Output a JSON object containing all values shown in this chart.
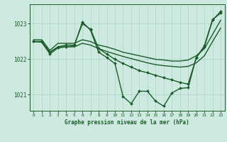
{
  "background_color": "#ceeae0",
  "grid_color": "#a8d5c5",
  "line_color": "#1a5c2a",
  "xlabel": "Graphe pression niveau de la mer (hPa)",
  "xlim": [
    -0.5,
    23.5
  ],
  "ylim": [
    1020.55,
    1023.55
  ],
  "yticks": [
    1021,
    1022,
    1023
  ],
  "xtick_labels": [
    "0",
    "1",
    "2",
    "3",
    "4",
    "5",
    "6",
    "7",
    "8",
    "9",
    "10",
    "11",
    "12",
    "13",
    "14",
    "15",
    "16",
    "17",
    "18",
    "19",
    "20",
    "21",
    "22",
    "23"
  ],
  "xticks": [
    0,
    1,
    2,
    3,
    4,
    5,
    6,
    7,
    8,
    9,
    10,
    11,
    12,
    13,
    14,
    15,
    16,
    17,
    18,
    19,
    20,
    21,
    22,
    23
  ],
  "series": [
    {
      "x": [
        0,
        1,
        2,
        3,
        4,
        5,
        6,
        7,
        8,
        9,
        10,
        11,
        12,
        13,
        14,
        15,
        16,
        17,
        18,
        19,
        20,
        21,
        22,
        23
      ],
      "y": [
        1022.55,
        1022.55,
        1022.25,
        1022.45,
        1022.45,
        1022.45,
        1022.55,
        1022.5,
        1022.4,
        1022.35,
        1022.28,
        1022.2,
        1022.15,
        1022.1,
        1022.05,
        1022.0,
        1021.98,
        1021.95,
        1021.95,
        1021.98,
        1022.1,
        1022.3,
        1022.7,
        1023.1
      ],
      "marker": null,
      "linewidth": 1.0
    },
    {
      "x": [
        0,
        1,
        2,
        3,
        4,
        5,
        6,
        7,
        8,
        9,
        10,
        11,
        12,
        13,
        14,
        15,
        16,
        17,
        18,
        19,
        20,
        21,
        22,
        23
      ],
      "y": [
        1022.5,
        1022.5,
        1022.2,
        1022.35,
        1022.35,
        1022.35,
        1022.45,
        1022.4,
        1022.3,
        1022.22,
        1022.15,
        1022.08,
        1022.02,
        1021.96,
        1021.9,
        1021.85,
        1021.82,
        1021.8,
        1021.78,
        1021.8,
        1021.9,
        1022.1,
        1022.5,
        1022.88
      ],
      "marker": null,
      "linewidth": 1.0
    },
    {
      "x": [
        0,
        1,
        2,
        3,
        4,
        5,
        6,
        7,
        8,
        9,
        10,
        11,
        12,
        13,
        14,
        15,
        16,
        17,
        18,
        19,
        20,
        21,
        22,
        23
      ],
      "y": [
        1022.5,
        1022.5,
        1022.2,
        1022.35,
        1022.4,
        1022.4,
        1023.0,
        1022.85,
        1022.3,
        1022.15,
        1022.0,
        1021.88,
        1021.78,
        1021.68,
        1021.62,
        1021.55,
        1021.48,
        1021.42,
        1021.35,
        1021.3,
        1022.05,
        1022.35,
        1023.1,
        1023.35
      ],
      "marker": "D",
      "markersize": 2.0,
      "linewidth": 1.0
    },
    {
      "x": [
        0,
        1,
        2,
        3,
        4,
        5,
        6,
        7,
        8,
        9,
        10,
        11,
        12,
        13,
        14,
        15,
        16,
        17,
        18,
        19,
        20,
        21,
        22,
        23
      ],
      "y": [
        1022.5,
        1022.48,
        1022.15,
        1022.32,
        1022.35,
        1022.38,
        1023.05,
        1022.82,
        1022.2,
        1022.05,
        1021.88,
        1020.95,
        1020.75,
        1021.1,
        1021.1,
        1020.82,
        1020.68,
        1021.05,
        1021.18,
        1021.2,
        1022.05,
        1022.38,
        1023.12,
        1023.3
      ],
      "marker": "D",
      "markersize": 2.0,
      "linewidth": 1.0
    }
  ],
  "figwidth": 3.2,
  "figheight": 2.0,
  "dpi": 100
}
